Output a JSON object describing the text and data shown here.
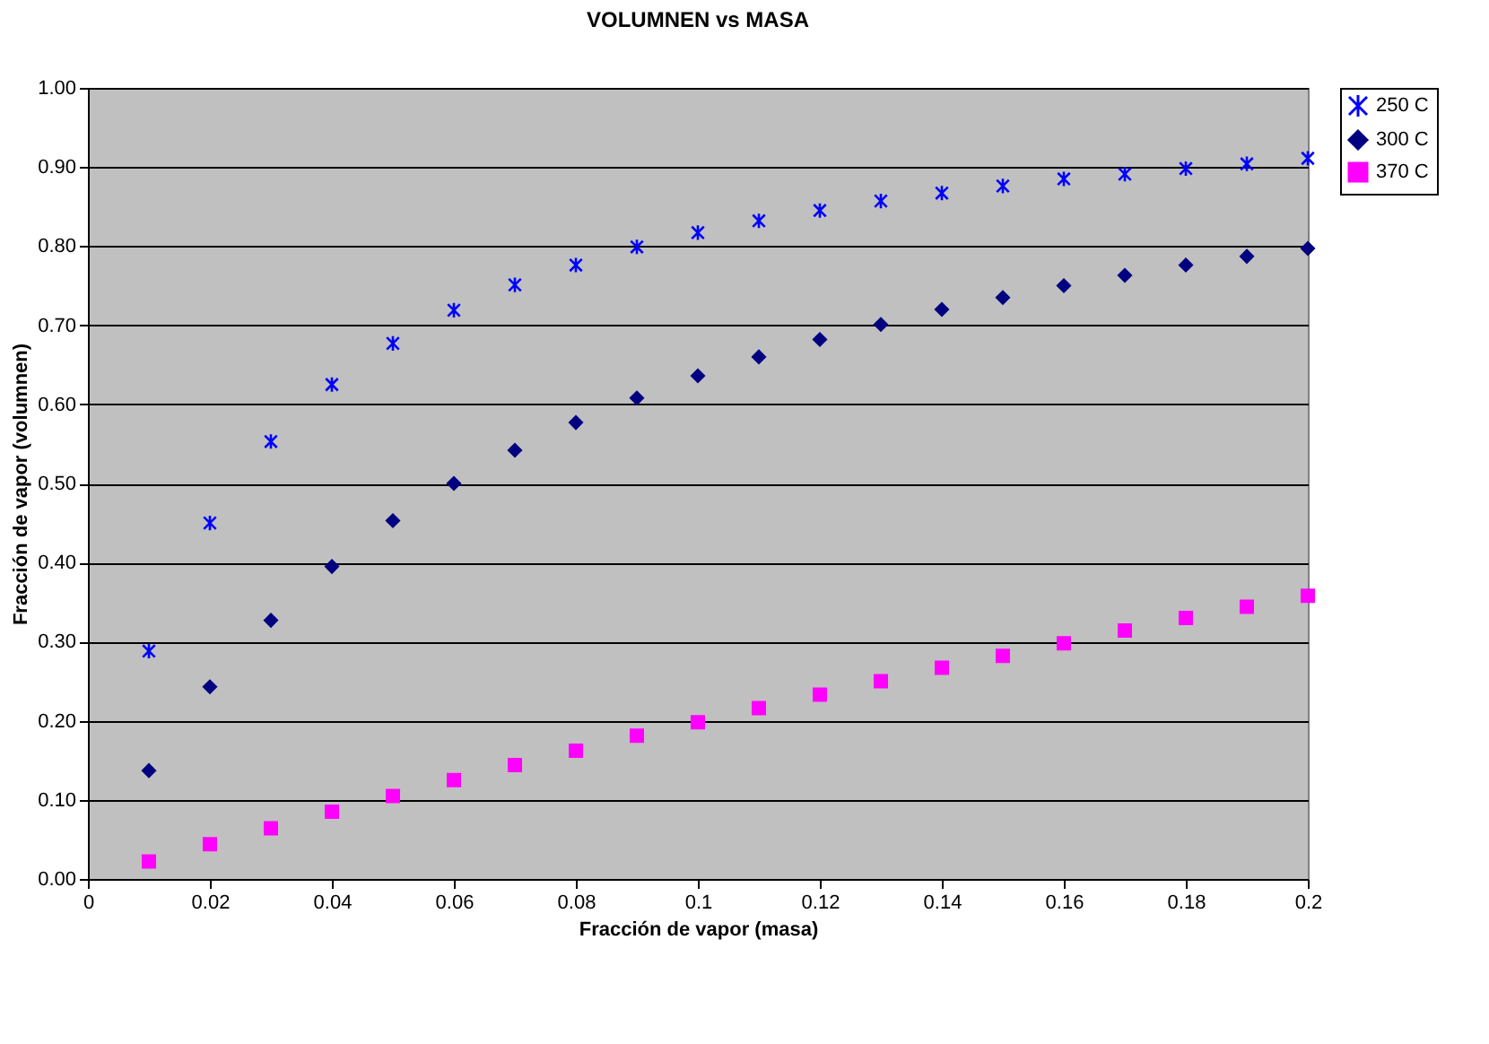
{
  "chart_data": {
    "type": "scatter",
    "title": "VOLUMNEN vs MASA",
    "xlabel": "Fracción de vapor (masa)",
    "ylabel": "Fracción de vapor (volumnen)",
    "x": [
      0.01,
      0.02,
      0.03,
      0.04,
      0.05,
      0.06,
      0.07,
      0.08,
      0.09,
      0.1,
      0.11,
      0.12,
      0.13,
      0.14,
      0.15,
      0.16,
      0.17,
      0.18,
      0.19,
      0.2
    ],
    "series": [
      {
        "name": "250 C",
        "color": "#0000ff",
        "marker": "cross",
        "values": [
          0.288,
          0.45,
          0.553,
          0.625,
          0.677,
          0.719,
          0.751,
          0.776,
          0.799,
          0.817,
          0.832,
          0.845,
          0.857,
          0.867,
          0.876,
          0.885,
          0.891,
          0.898,
          0.904,
          0.911
        ]
      },
      {
        "name": "300 C",
        "color": "#000080",
        "marker": "diamond",
        "values": [
          0.137,
          0.243,
          0.327,
          0.395,
          0.453,
          0.5,
          0.542,
          0.577,
          0.608,
          0.636,
          0.66,
          0.682,
          0.701,
          0.72,
          0.735,
          0.75,
          0.763,
          0.776,
          0.787,
          0.797
        ]
      },
      {
        "name": "370 C",
        "color": "#ff00ff",
        "marker": "square",
        "values": [
          0.022,
          0.044,
          0.064,
          0.085,
          0.105,
          0.125,
          0.144,
          0.162,
          0.181,
          0.198,
          0.216,
          0.233,
          0.25,
          0.267,
          0.282,
          0.298,
          0.314,
          0.33,
          0.344,
          0.358
        ]
      }
    ],
    "xlim": [
      0,
      0.2
    ],
    "xticks": [
      0,
      0.02,
      0.04,
      0.06,
      0.08,
      0.1,
      0.12,
      0.14,
      0.16,
      0.18,
      0.2
    ],
    "ylim": [
      0,
      1
    ],
    "yticks": [
      {
        "value": 0,
        "label": "0.00"
      },
      {
        "value": 0.1,
        "label": "0.10"
      },
      {
        "value": 0.2,
        "label": "0.20"
      },
      {
        "value": 0.3,
        "label": "0.30"
      },
      {
        "value": 0.4,
        "label": "0.40"
      },
      {
        "value": 0.5,
        "label": "0.50"
      },
      {
        "value": 0.6,
        "label": "0.60"
      },
      {
        "value": 0.7,
        "label": "0.70"
      },
      {
        "value": 0.8,
        "label": "0.80"
      },
      {
        "value": 0.9,
        "label": "0.90"
      },
      {
        "value": 1,
        "label": "1.00"
      }
    ],
    "grid": "y",
    "legend": "right"
  }
}
